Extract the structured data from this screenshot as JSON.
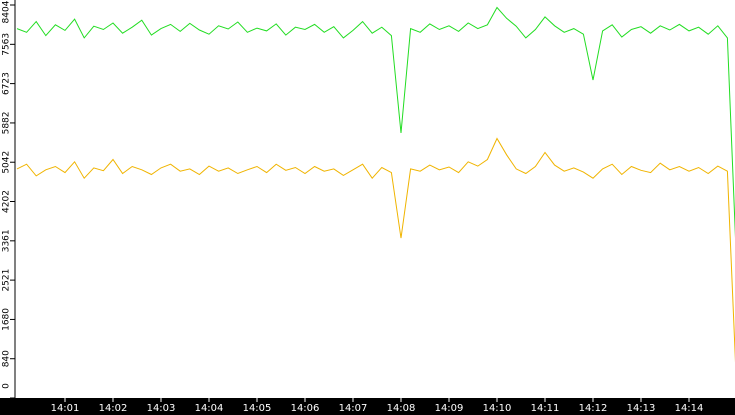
{
  "chart_data": {
    "type": "line",
    "x": [
      840,
      840.2,
      840.4,
      840.6,
      840.8,
      841,
      841.2,
      841.4,
      841.6,
      841.8,
      842,
      842.2,
      842.4,
      842.6,
      842.8,
      843,
      843.2,
      843.4,
      843.6,
      843.8,
      844,
      844.2,
      844.4,
      844.6,
      844.8,
      845,
      845.2,
      845.4,
      845.6,
      845.8,
      846,
      846.2,
      846.4,
      846.6,
      846.8,
      847,
      847.2,
      847.4,
      847.6,
      847.8,
      848,
      848.2,
      848.4,
      848.6,
      848.8,
      849,
      849.2,
      849.4,
      849.6,
      849.8,
      850,
      850.2,
      850.4,
      850.6,
      850.8,
      851,
      851.2,
      851.4,
      851.6,
      851.8,
      852,
      852.2,
      852.4,
      852.6,
      852.8,
      853,
      853.2,
      853.4,
      853.6,
      853.8,
      854,
      854.2,
      854.4,
      854.6,
      854.8,
      855
    ],
    "series": [
      {
        "color": "#22dd22",
        "values": [
          7900,
          7820,
          8050,
          7750,
          7980,
          7860,
          8100,
          7700,
          7950,
          7880,
          8020,
          7800,
          7930,
          8080,
          7760,
          7900,
          7990,
          7840,
          8010,
          7870,
          7780,
          7960,
          7890,
          8040,
          7820,
          7910,
          7850,
          8000,
          7760,
          7930,
          7880,
          7990,
          7820,
          7940,
          7700,
          7860,
          8050,
          7800,
          7930,
          7750,
          5670,
          7900,
          7820,
          8000,
          7880,
          7960,
          7840,
          8020,
          7900,
          7980,
          8350,
          8120,
          7950,
          7700,
          7880,
          8150,
          7960,
          7820,
          7900,
          7780,
          6800,
          7850,
          7980,
          7720,
          7880,
          7940,
          7800,
          7960,
          7870,
          7990,
          7850,
          7930,
          7780,
          7960,
          7700,
          2630
        ]
      },
      {
        "color": "#f0b400",
        "values": [
          4900,
          5000,
          4750,
          4880,
          4950,
          4820,
          5050,
          4700,
          4920,
          4860,
          5100,
          4800,
          4950,
          4880,
          4780,
          4920,
          5000,
          4850,
          4900,
          4780,
          4960,
          4850,
          4920,
          4800,
          4880,
          4950,
          4820,
          5000,
          4870,
          4930,
          4800,
          4950,
          4850,
          4900,
          4760,
          4880,
          5000,
          4700,
          4930,
          4820,
          3420,
          4900,
          4850,
          4980,
          4880,
          4940,
          4820,
          5050,
          4960,
          5100,
          5550,
          5200,
          4900,
          4800,
          4950,
          5250,
          4980,
          4850,
          4920,
          4830,
          4700,
          4900,
          5000,
          4780,
          4950,
          4870,
          4820,
          5020,
          4880,
          4950,
          4850,
          4930,
          4800,
          4960,
          4850,
          0
        ]
      }
    ],
    "xlim": [
      840,
      855
    ],
    "xticks": [
      {
        "value": 841,
        "label": "14:01"
      },
      {
        "value": 842,
        "label": "14:02"
      },
      {
        "value": 843,
        "label": "14:03"
      },
      {
        "value": 844,
        "label": "14:04"
      },
      {
        "value": 845,
        "label": "14:05"
      },
      {
        "value": 846,
        "label": "14:06"
      },
      {
        "value": 847,
        "label": "14:07"
      },
      {
        "value": 848,
        "label": "14:08"
      },
      {
        "value": 849,
        "label": "14:09"
      },
      {
        "value": 850,
        "label": "14:10"
      },
      {
        "value": 851,
        "label": "14:11"
      },
      {
        "value": 852,
        "label": "14:12"
      },
      {
        "value": 853,
        "label": "14:13"
      },
      {
        "value": 854,
        "label": "14:14"
      }
    ],
    "ylim": [
      0,
      8404
    ],
    "yticks": [
      0,
      840,
      1680,
      2521,
      3361,
      4202,
      5042,
      5882,
      6723,
      7563,
      8404
    ]
  }
}
